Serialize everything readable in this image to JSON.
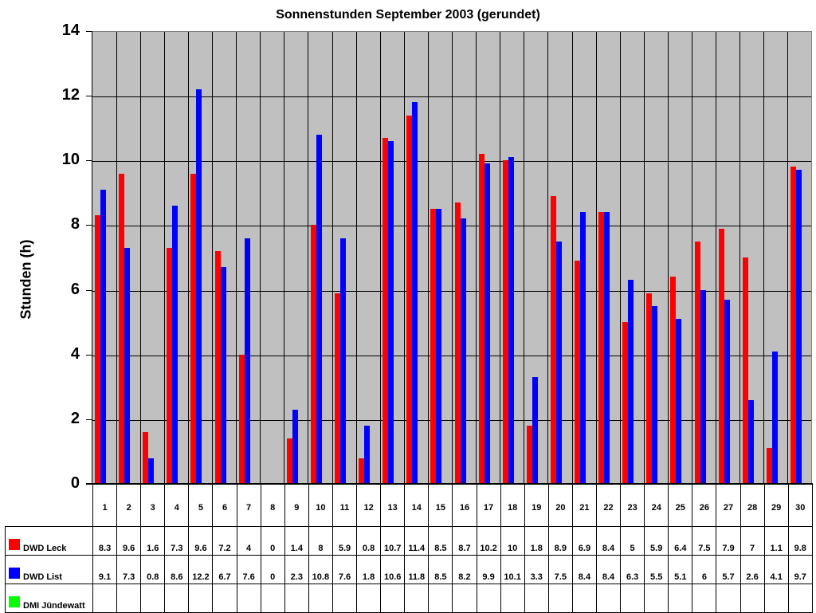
{
  "chart_data": {
    "type": "bar",
    "title": "Sonnenstunden September 2003 (gerundet)",
    "xlabel": "",
    "ylabel": "Stunden (h)",
    "ylim": [
      0,
      14
    ],
    "yticks": [
      0,
      2,
      4,
      6,
      8,
      10,
      12,
      14
    ],
    "grid": true,
    "legend_position": "data-table-left",
    "categories": [
      "1",
      "2",
      "3",
      "4",
      "5",
      "6",
      "7",
      "8",
      "9",
      "10",
      "11",
      "12",
      "13",
      "14",
      "15",
      "16",
      "17",
      "18",
      "19",
      "20",
      "21",
      "22",
      "23",
      "24",
      "25",
      "26",
      "27",
      "28",
      "29",
      "30"
    ],
    "series": [
      {
        "name": "DWD Leck",
        "color": "#ff0000",
        "values": [
          8.3,
          9.6,
          1.6,
          7.3,
          9.6,
          7.2,
          4,
          0,
          1.4,
          8,
          5.9,
          0.8,
          10.7,
          11.4,
          8.5,
          8.7,
          10.2,
          10,
          1.8,
          8.9,
          6.9,
          8.4,
          5,
          5.9,
          6.4,
          7.5,
          7.9,
          7,
          1.1,
          9.8
        ]
      },
      {
        "name": "DWD List",
        "color": "#0000ff",
        "values": [
          9.1,
          7.3,
          0.8,
          8.6,
          12.2,
          6.7,
          7.6,
          0,
          2.3,
          10.8,
          7.6,
          1.8,
          10.6,
          11.8,
          8.5,
          8.2,
          9.9,
          10.1,
          3.3,
          7.5,
          8.4,
          8.4,
          6.3,
          5.5,
          5.1,
          6,
          5.7,
          2.6,
          4.1,
          9.7
        ]
      },
      {
        "name": "DMI Jündewatt",
        "color": "#00ff00",
        "values": [
          null,
          null,
          null,
          null,
          null,
          null,
          null,
          null,
          null,
          null,
          null,
          null,
          null,
          null,
          null,
          null,
          null,
          null,
          null,
          null,
          null,
          null,
          null,
          null,
          null,
          null,
          null,
          null,
          null,
          null
        ]
      }
    ]
  },
  "colors": {
    "plot_bg": "#c0c0c0"
  }
}
